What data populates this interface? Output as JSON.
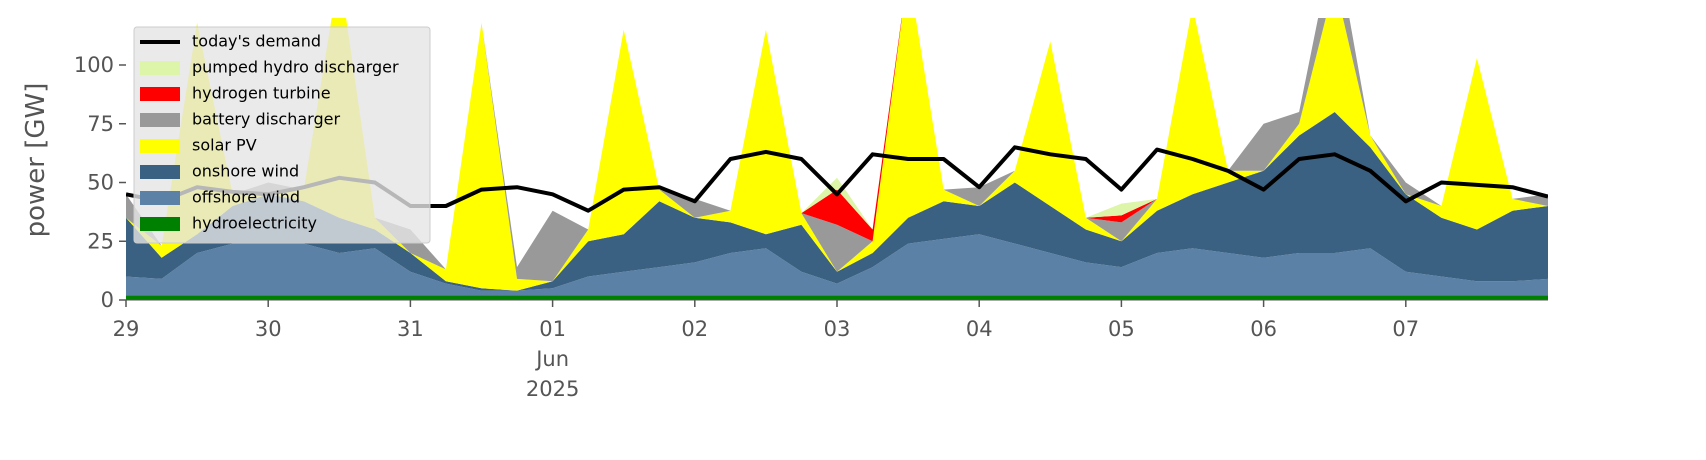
{
  "chart_data": {
    "type": "area",
    "ylabel": "power [GW]",
    "legend": "upper left",
    "grid": false,
    "x": [
      "2025-05-29T00:00",
      "2025-05-29T06:00",
      "2025-05-29T12:00",
      "2025-05-29T18:00",
      "2025-05-30T00:00",
      "2025-05-30T06:00",
      "2025-05-30T12:00",
      "2025-05-30T18:00",
      "2025-05-31T00:00",
      "2025-05-31T06:00",
      "2025-05-31T12:00",
      "2025-05-31T18:00",
      "2025-06-01T00:00",
      "2025-06-01T06:00",
      "2025-06-01T12:00",
      "2025-06-01T18:00",
      "2025-06-02T00:00",
      "2025-06-02T06:00",
      "2025-06-02T12:00",
      "2025-06-02T18:00",
      "2025-06-03T00:00",
      "2025-06-03T06:00",
      "2025-06-03T12:00",
      "2025-06-03T18:00",
      "2025-06-04T00:00",
      "2025-06-04T06:00",
      "2025-06-04T12:00",
      "2025-06-04T18:00",
      "2025-06-05T00:00",
      "2025-06-05T06:00",
      "2025-06-05T12:00",
      "2025-06-05T18:00",
      "2025-06-06T00:00",
      "2025-06-06T06:00",
      "2025-06-06T12:00",
      "2025-06-06T18:00",
      "2025-06-07T00:00",
      "2025-06-07T06:00",
      "2025-06-07T12:00",
      "2025-06-07T18:00",
      "2025-06-08T00:00"
    ],
    "xlim": [
      "2025-05-29T00:00",
      "2025-06-08T00:00"
    ],
    "xticks": [
      {
        "value": "2025-05-29T00:00",
        "label": "29"
      },
      {
        "value": "2025-05-30T00:00",
        "label": "30"
      },
      {
        "value": "2025-05-31T00:00",
        "label": "31"
      },
      {
        "value": "2025-06-01T00:00",
        "label": "01\nJun\n2025"
      },
      {
        "value": "2025-06-02T00:00",
        "label": "02"
      },
      {
        "value": "2025-06-03T00:00",
        "label": "03"
      },
      {
        "value": "2025-06-04T00:00",
        "label": "04"
      },
      {
        "value": "2025-06-05T00:00",
        "label": "05"
      },
      {
        "value": "2025-06-06T00:00",
        "label": "06"
      },
      {
        "value": "2025-06-07T00:00",
        "label": "07"
      }
    ],
    "ylim": [
      0,
      120
    ],
    "yticks": [
      0,
      25,
      50,
      75,
      100
    ],
    "series": [
      {
        "name": "today's demand",
        "type": "line",
        "color": "#000000",
        "values": [
          45,
          42,
          48,
          46,
          45,
          48,
          52,
          50,
          40,
          40,
          47,
          48,
          45,
          38,
          47,
          48,
          42,
          60,
          63,
          60,
          45,
          62,
          60,
          60,
          48,
          65,
          62,
          60,
          47,
          64,
          60,
          55,
          47,
          60,
          62,
          55,
          42,
          50,
          49,
          48,
          44
        ]
      },
      {
        "name": "pumped hydro discharger",
        "color": "#dcf5a8",
        "values": [
          0,
          0,
          0,
          0,
          0,
          0,
          0,
          0,
          0,
          0,
          0,
          0,
          0,
          0,
          0,
          0,
          0,
          0,
          0,
          0,
          5,
          0,
          0,
          0,
          0,
          0,
          0,
          0,
          5,
          0,
          0,
          0,
          0,
          0,
          0,
          0,
          0,
          0,
          0,
          0,
          0
        ]
      },
      {
        "name": "hydrogen turbine",
        "color": "#ff0000",
        "values": [
          0,
          0,
          0,
          0,
          0,
          0,
          0,
          0,
          0,
          0,
          0,
          0,
          0,
          0,
          0,
          0,
          0,
          0,
          0,
          0,
          15,
          5,
          0,
          0,
          0,
          0,
          0,
          0,
          3,
          0,
          0,
          0,
          0,
          0,
          0,
          0,
          0,
          0,
          0,
          0,
          0
        ]
      },
      {
        "name": "battery discharger",
        "color": "#999999",
        "values": [
          10,
          0,
          0,
          0,
          5,
          0,
          0,
          0,
          10,
          0,
          0,
          5,
          30,
          0,
          0,
          0,
          8,
          0,
          0,
          0,
          20,
          0,
          0,
          0,
          8,
          0,
          0,
          0,
          8,
          0,
          0,
          0,
          20,
          5,
          20,
          0,
          5,
          0,
          0,
          0,
          5
        ]
      },
      {
        "name": "solar PV",
        "color": "#ffff00",
        "values": [
          0,
          5,
          90,
          5,
          0,
          5,
          105,
          5,
          0,
          5,
          113,
          5,
          0,
          5,
          87,
          5,
          0,
          5,
          87,
          5,
          0,
          5,
          105,
          5,
          0,
          5,
          70,
          5,
          0,
          5,
          80,
          5,
          0,
          5,
          55,
          5,
          0,
          5,
          73,
          5,
          0
        ]
      },
      {
        "name": "onshore wind",
        "color": "#3b6182",
        "values": [
          25,
          9,
          8,
          16,
          21,
          18,
          15,
          8,
          8,
          1,
          1,
          0,
          3,
          15,
          16,
          28,
          19,
          13,
          6,
          20,
          5,
          6,
          11,
          16,
          12,
          26,
          20,
          14,
          11,
          18,
          23,
          30,
          37,
          50,
          60,
          43,
          33,
          25,
          22,
          30,
          31
        ]
      },
      {
        "name": "offshore wind",
        "color": "#5b82a6",
        "values": [
          8,
          7,
          18,
          22,
          22,
          22,
          18,
          20,
          10,
          5,
          2,
          2,
          3,
          8,
          10,
          12,
          14,
          18,
          20,
          10,
          5,
          12,
          22,
          24,
          26,
          22,
          18,
          14,
          12,
          18,
          20,
          18,
          16,
          18,
          18,
          20,
          10,
          8,
          6,
          6,
          7
        ]
      },
      {
        "name": "hydroelectricity",
        "color": "#008000",
        "values": [
          2,
          2,
          2,
          2,
          2,
          2,
          2,
          2,
          2,
          2,
          2,
          2,
          2,
          2,
          2,
          2,
          2,
          2,
          2,
          2,
          2,
          2,
          2,
          2,
          2,
          2,
          2,
          2,
          2,
          2,
          2,
          2,
          2,
          2,
          2,
          2,
          2,
          2,
          2,
          2,
          2
        ]
      }
    ]
  }
}
